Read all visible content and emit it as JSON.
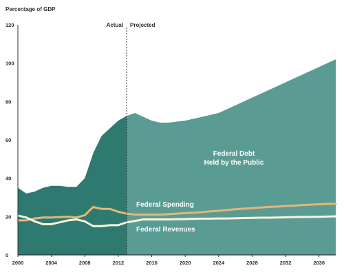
{
  "chart_data": {
    "type": "area",
    "title": "",
    "ylabel": "Percentage of GDP",
    "xlabel": "",
    "xlim": [
      2000,
      2038
    ],
    "ylim": [
      0,
      120
    ],
    "yticks": [
      0,
      20,
      40,
      60,
      80,
      100,
      120
    ],
    "xticks": [
      2000,
      2004,
      2008,
      2012,
      2016,
      2020,
      2024,
      2028,
      2032,
      2036
    ],
    "grid": false,
    "legend": "inline labels",
    "projection_start": 2013,
    "actual_label": "Actual",
    "projected_label": "Projected",
    "series": [
      {
        "name": "Federal Debt Held by the Public",
        "label_lines": [
          "Federal Debt",
          "Held by the Public"
        ],
        "render": "area",
        "points": [
          [
            2000,
            35
          ],
          [
            2001,
            32
          ],
          [
            2002,
            33
          ],
          [
            2003,
            35
          ],
          [
            2004,
            36
          ],
          [
            2005,
            36
          ],
          [
            2006,
            35.5
          ],
          [
            2007,
            35.5
          ],
          [
            2008,
            40
          ],
          [
            2009,
            53
          ],
          [
            2010,
            62
          ],
          [
            2011,
            66
          ],
          [
            2012,
            70
          ],
          [
            2013,
            72.5
          ],
          [
            2014,
            74
          ],
          [
            2015,
            72
          ],
          [
            2016,
            70
          ],
          [
            2017,
            69
          ],
          [
            2018,
            69
          ],
          [
            2019,
            69.5
          ],
          [
            2020,
            70
          ],
          [
            2021,
            71
          ],
          [
            2022,
            72
          ],
          [
            2023,
            73
          ],
          [
            2024,
            74
          ],
          [
            2025,
            76
          ],
          [
            2026,
            78
          ],
          [
            2027,
            80
          ],
          [
            2028,
            82
          ],
          [
            2029,
            84
          ],
          [
            2030,
            86
          ],
          [
            2031,
            88
          ],
          [
            2032,
            90
          ],
          [
            2033,
            92
          ],
          [
            2034,
            94
          ],
          [
            2035,
            96
          ],
          [
            2036,
            98
          ],
          [
            2037,
            100
          ],
          [
            2038,
            102
          ]
        ]
      },
      {
        "name": "Federal Spending",
        "label_lines": [
          "Federal Spending"
        ],
        "render": "line",
        "points": [
          [
            2000,
            18
          ],
          [
            2001,
            18
          ],
          [
            2002,
            19
          ],
          [
            2003,
            19.5
          ],
          [
            2004,
            19.5
          ],
          [
            2005,
            19.7
          ],
          [
            2006,
            19.9
          ],
          [
            2007,
            19.5
          ],
          [
            2008,
            20.7
          ],
          [
            2009,
            25
          ],
          [
            2010,
            24
          ],
          [
            2011,
            24
          ],
          [
            2012,
            22.5
          ],
          [
            2013,
            21.5
          ],
          [
            2014,
            21
          ],
          [
            2015,
            21
          ],
          [
            2016,
            21
          ],
          [
            2017,
            21
          ],
          [
            2018,
            21.2
          ],
          [
            2019,
            21.5
          ],
          [
            2020,
            21.8
          ],
          [
            2021,
            22
          ],
          [
            2022,
            22.3
          ],
          [
            2023,
            22.7
          ],
          [
            2024,
            23
          ],
          [
            2025,
            23.4
          ],
          [
            2026,
            23.8
          ],
          [
            2027,
            24.1
          ],
          [
            2028,
            24.4
          ],
          [
            2029,
            24.7
          ],
          [
            2030,
            25
          ],
          [
            2031,
            25.2
          ],
          [
            2032,
            25.5
          ],
          [
            2033,
            25.7
          ],
          [
            2034,
            26
          ],
          [
            2035,
            26.2
          ],
          [
            2036,
            26.4
          ],
          [
            2037,
            26.6
          ],
          [
            2038,
            26.7
          ]
        ]
      },
      {
        "name": "Federal Revenues",
        "label_lines": [
          "Federal Revenues"
        ],
        "render": "line",
        "points": [
          [
            2000,
            20.5
          ],
          [
            2001,
            19.5
          ],
          [
            2002,
            17.5
          ],
          [
            2003,
            16
          ],
          [
            2004,
            16
          ],
          [
            2005,
            17
          ],
          [
            2006,
            18
          ],
          [
            2007,
            18.5
          ],
          [
            2008,
            17.5
          ],
          [
            2009,
            15
          ],
          [
            2010,
            15
          ],
          [
            2011,
            15.5
          ],
          [
            2012,
            15.5
          ],
          [
            2013,
            17
          ],
          [
            2014,
            17.7
          ],
          [
            2015,
            18.5
          ],
          [
            2016,
            18.5
          ],
          [
            2017,
            18.5
          ],
          [
            2018,
            18.5
          ],
          [
            2019,
            18.6
          ],
          [
            2020,
            18.7
          ],
          [
            2021,
            18.8
          ],
          [
            2022,
            18.9
          ],
          [
            2023,
            18.9
          ],
          [
            2024,
            19
          ],
          [
            2025,
            19
          ],
          [
            2026,
            19.1
          ],
          [
            2027,
            19.2
          ],
          [
            2028,
            19.3
          ],
          [
            2029,
            19.4
          ],
          [
            2030,
            19.4
          ],
          [
            2031,
            19.5
          ],
          [
            2032,
            19.6
          ],
          [
            2033,
            19.7
          ],
          [
            2034,
            19.8
          ],
          [
            2035,
            19.8
          ],
          [
            2036,
            19.9
          ],
          [
            2037,
            20
          ],
          [
            2038,
            20.1
          ]
        ]
      }
    ]
  },
  "colors": {
    "debt_actual": "#2f7a70",
    "debt_projected": "#5a9c93",
    "spending": "#e3b877",
    "revenues": "#fbf3dd",
    "debt_label": "#ffffff",
    "spending_label": "#ffffff",
    "revenues_label": "#ffffff",
    "axis": "#2f2f2f",
    "marker": "#333333"
  }
}
